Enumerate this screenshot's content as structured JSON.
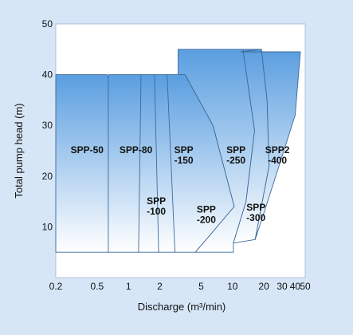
{
  "chart_data": {
    "type": "area",
    "title": "",
    "xlabel": "Discharge (m³/min)",
    "ylabel": "Total pump head (m)",
    "xscale": "log",
    "xlim": [
      0.2,
      50
    ],
    "ylim": [
      0,
      50
    ],
    "x_ticks": [
      0.2,
      0.5,
      1,
      2,
      5,
      10,
      20,
      30,
      40,
      50
    ],
    "x_tick_labels": [
      "0.2",
      "0.5",
      "1",
      "2",
      "5",
      "10",
      "20",
      "30",
      "40",
      "50"
    ],
    "y_ticks": [
      10,
      20,
      30,
      40,
      50
    ],
    "y_tick_labels": [
      "10",
      "20",
      "30",
      "40",
      "50"
    ],
    "grid": false,
    "colors": {
      "fill_top": "#5a9ee0",
      "fill_bottom": "#ffffff",
      "edge": "#3d6a9a",
      "background": "#d6e6f7",
      "plot": "#ffffff"
    },
    "series": [
      {
        "name": "SPP-50",
        "label_lines": [
          "SPP-50"
        ],
        "label_at": [
          0.4,
          24.5
        ],
        "outline": [
          [
            0.2,
            40
          ],
          [
            0.62,
            40
          ],
          [
            0.68,
            38
          ],
          [
            0.66,
            20
          ],
          [
            0.64,
            5
          ],
          [
            0.2,
            5
          ]
        ]
      },
      {
        "name": "SPP-80",
        "label_lines": [
          "SPP-80"
        ],
        "label_at": [
          1.18,
          24.5
        ],
        "outline": [
          [
            0.64,
            40
          ],
          [
            1.32,
            40
          ],
          [
            1.55,
            35
          ],
          [
            1.38,
            20
          ],
          [
            1.25,
            5
          ],
          [
            0.64,
            5
          ]
        ]
      },
      {
        "name": "SPP-100",
        "label_lines": [
          "SPP",
          "-100"
        ],
        "label_at": [
          1.85,
          14.5
        ],
        "outline": [
          [
            1.32,
            40
          ],
          [
            1.78,
            40
          ],
          [
            2.1,
            33
          ],
          [
            2.2,
            20
          ],
          [
            1.95,
            5
          ],
          [
            1.25,
            5
          ]
        ]
      },
      {
        "name": "SPP-150",
        "label_lines": [
          "SPP",
          "-150"
        ],
        "label_at": [
          3.4,
          24.5
        ],
        "outline": [
          [
            1.78,
            40
          ],
          [
            2.35,
            40
          ],
          [
            3.3,
            33
          ],
          [
            4.0,
            22
          ],
          [
            2.8,
            5
          ],
          [
            1.95,
            5
          ]
        ]
      },
      {
        "name": "SPP-200",
        "label_lines": [
          "SPP",
          "-200"
        ],
        "label_at": [
          5.6,
          12.8
        ],
        "outline": [
          [
            2.35,
            40
          ],
          [
            3.5,
            40
          ],
          [
            6.5,
            30
          ],
          [
            10.4,
            14
          ],
          [
            4.4,
            5
          ],
          [
            2.8,
            5
          ]
        ]
      },
      {
        "name": "SPP-250",
        "label_lines": [
          "SPP",
          "-250"
        ],
        "label_at": [
          10.8,
          24.5
        ],
        "outline": [
          [
            3.0,
            45
          ],
          [
            12.6,
            45
          ],
          [
            16.3,
            29
          ],
          [
            13.5,
            15
          ],
          [
            10.2,
            6.8
          ],
          [
            10.2,
            5
          ],
          [
            4.4,
            5
          ],
          [
            10.4,
            14
          ],
          [
            6.5,
            30
          ],
          [
            3.5,
            40
          ],
          [
            3.0,
            40
          ]
        ]
      },
      {
        "name": "SPP-300",
        "label_lines": [
          "SPP",
          "-300"
        ],
        "label_at": [
          16.8,
          13.2
        ],
        "outline": [
          [
            12.6,
            45
          ],
          [
            19.0,
            45
          ],
          [
            21.5,
            35
          ],
          [
            22.5,
            22
          ],
          [
            16.5,
            7.5
          ],
          [
            10.2,
            6.8
          ],
          [
            13.5,
            15
          ],
          [
            16.3,
            29
          ]
        ]
      },
      {
        "name": "SPP2-400",
        "label_lines": [
          "SPP2",
          "-400"
        ],
        "label_at": [
          27.0,
          24.5
        ],
        "outline": [
          [
            12.0,
            44.5
          ],
          [
            45,
            44.5
          ],
          [
            40,
            32
          ],
          [
            28.0,
            22
          ],
          [
            21.0,
            14
          ],
          [
            16.5,
            7.5
          ],
          [
            22.5,
            22
          ],
          [
            21.5,
            35
          ],
          [
            19.0,
            45
          ]
        ]
      }
    ]
  }
}
